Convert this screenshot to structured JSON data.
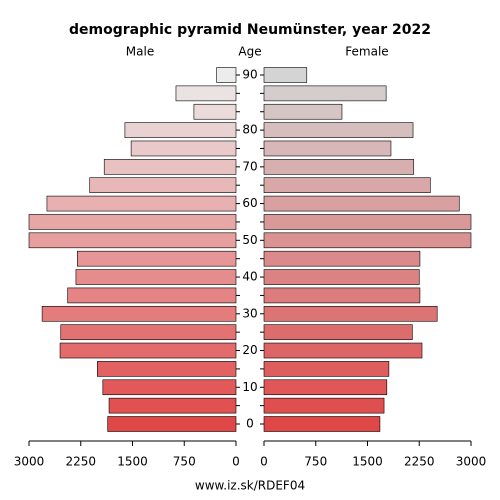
{
  "chart_data": {
    "type": "pyramid",
    "title": "demographic pyramid Neumünster, year 2022",
    "axis_label": "Age",
    "footer": "www.iz.sk/RDEF04",
    "categories": [
      "0",
      null,
      "10",
      null,
      "20",
      null,
      "30",
      null,
      "40",
      null,
      "50",
      null,
      "60",
      null,
      "70",
      null,
      "80",
      null,
      null,
      "90"
    ],
    "series": [
      {
        "name": "Male",
        "colors": [
          "#e04848",
          "#ececec"
        ],
        "values": [
          1860,
          1840,
          1930,
          2010,
          2550,
          2540,
          2810,
          2440,
          2320,
          2300,
          3000,
          3000,
          2740,
          2120,
          1910,
          1520,
          1610,
          610,
          870,
          280
        ]
      },
      {
        "name": "Female",
        "colors": [
          "#e04848",
          "#d4d4d4"
        ],
        "values": [
          1680,
          1740,
          1780,
          1810,
          2290,
          2150,
          2510,
          2260,
          2250,
          2260,
          3000,
          3000,
          2830,
          2410,
          2170,
          1840,
          2160,
          1130,
          1770,
          620
        ]
      }
    ],
    "xlim": [
      0,
      3000
    ],
    "xticks": [
      0,
      750,
      1500,
      2250,
      3000
    ]
  }
}
